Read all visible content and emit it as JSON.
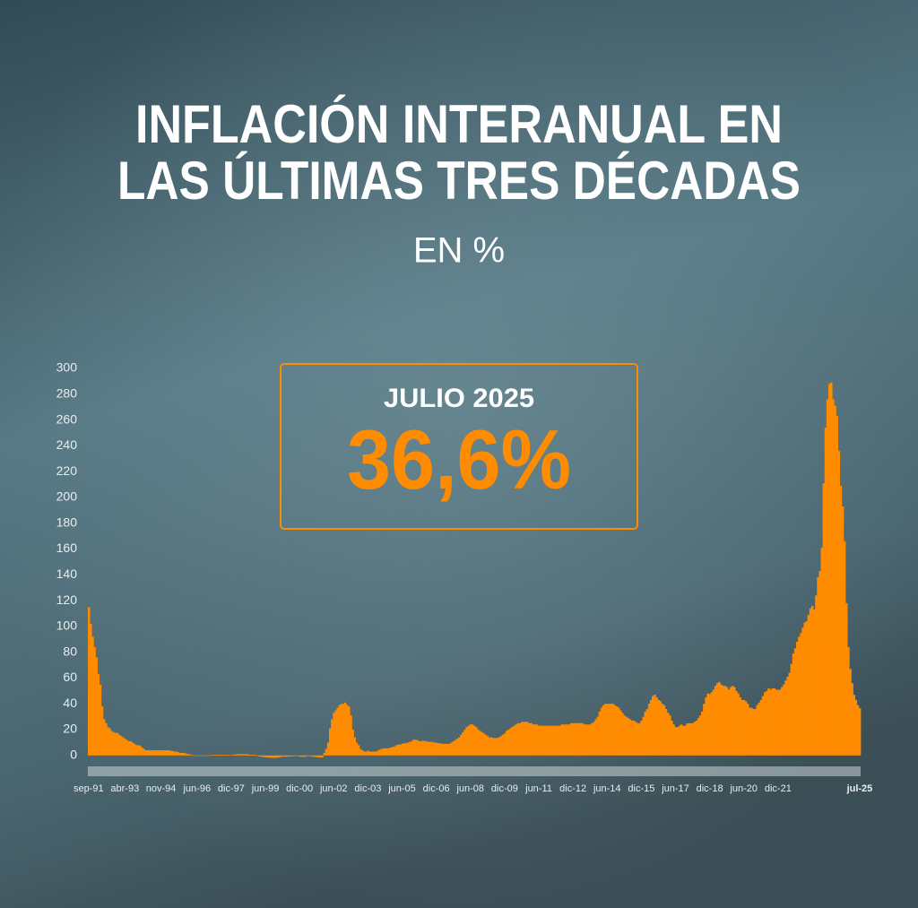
{
  "chart_data": {
    "type": "bar",
    "title": [
      "INFLACIÓN INTERANUAL EN",
      "LAS ÚLTIMAS TRES DÉCADAS"
    ],
    "subtitle": "EN %",
    "callout": {
      "label": "JULIO 2025",
      "value_label": "36,6%"
    },
    "color": "#ff8c00",
    "ylim": [
      -5,
      300
    ],
    "yticks": [
      0,
      20,
      40,
      60,
      80,
      100,
      120,
      140,
      160,
      180,
      200,
      220,
      240,
      260,
      280,
      300
    ],
    "categories": [
      "sep-91",
      null,
      null,
      null,
      null,
      null,
      null,
      null,
      null,
      null,
      null,
      null,
      null,
      null,
      null,
      null,
      null,
      null,
      null,
      "abr-93",
      null,
      null,
      null,
      null,
      null,
      null,
      null,
      null,
      null,
      null,
      null,
      null,
      null,
      null,
      null,
      null,
      null,
      null,
      "nov-94",
      null,
      null,
      null,
      null,
      null,
      null,
      null,
      null,
      null,
      null,
      null,
      null,
      null,
      null,
      null,
      null,
      null,
      null,
      "jun-96",
      null,
      null,
      null,
      null,
      null,
      null,
      null,
      null,
      null,
      null,
      null,
      null,
      null,
      null,
      null,
      null,
      null,
      "dic-97",
      null,
      null,
      null,
      null,
      null,
      null,
      null,
      null,
      null,
      null,
      null,
      null,
      null,
      null,
      null,
      null,
      null,
      "jun-99",
      null,
      null,
      null,
      null,
      null,
      null,
      null,
      null,
      null,
      null,
      null,
      null,
      null,
      null,
      null,
      null,
      null,
      "dic-00",
      null,
      null,
      null,
      null,
      null,
      null,
      null,
      null,
      null,
      null,
      null,
      null,
      null,
      null,
      null,
      null,
      null,
      "jun-02",
      null,
      null,
      null,
      null,
      null,
      null,
      null,
      null,
      null,
      null,
      null,
      null,
      null,
      null,
      null,
      null,
      null,
      "dic-03",
      null,
      null,
      null,
      null,
      null,
      null,
      null,
      null,
      null,
      null,
      null,
      null,
      null,
      null,
      null,
      null,
      null,
      "jun-05",
      null,
      null,
      null,
      null,
      null,
      null,
      null,
      null,
      null,
      null,
      null,
      null,
      null,
      null,
      null,
      null,
      null,
      "dic-06",
      null,
      null,
      null,
      null,
      null,
      null,
      null,
      null,
      null,
      null,
      null,
      null,
      null,
      null,
      null,
      null,
      null,
      "jun-08",
      null,
      null,
      null,
      null,
      null,
      null,
      null,
      null,
      null,
      null,
      null,
      null,
      null,
      null,
      null,
      null,
      null,
      "dic-09",
      null,
      null,
      null,
      null,
      null,
      null,
      null,
      null,
      null,
      null,
      null,
      null,
      null,
      null,
      null,
      null,
      null,
      "jun-11",
      null,
      null,
      null,
      null,
      null,
      null,
      null,
      null,
      null,
      null,
      null,
      null,
      null,
      null,
      null,
      null,
      null,
      "dic-12",
      null,
      null,
      null,
      null,
      null,
      null,
      null,
      null,
      null,
      null,
      null,
      null,
      null,
      null,
      null,
      null,
      null,
      "jun-14",
      null,
      null,
      null,
      null,
      null,
      null,
      null,
      null,
      null,
      null,
      null,
      null,
      null,
      null,
      null,
      null,
      null,
      "dic-15",
      null,
      null,
      null,
      null,
      null,
      null,
      null,
      null,
      null,
      null,
      null,
      null,
      null,
      null,
      null,
      null,
      null,
      "jun-17",
      null,
      null,
      null,
      null,
      null,
      null,
      null,
      null,
      null,
      null,
      null,
      null,
      null,
      null,
      null,
      null,
      null,
      "dic-18",
      null,
      null,
      null,
      null,
      null,
      null,
      null,
      null,
      null,
      null,
      null,
      null,
      null,
      null,
      null,
      null,
      null,
      "jun-20",
      null,
      null,
      null,
      null,
      null,
      null,
      null,
      null,
      null,
      null,
      null,
      null,
      null,
      null,
      null,
      null,
      null,
      "dic-21",
      null,
      null,
      null,
      null,
      null,
      null,
      null,
      null,
      null,
      null,
      null,
      null,
      null,
      null,
      null,
      null,
      null,
      null,
      null,
      null,
      null,
      null,
      null,
      null,
      null,
      null,
      null,
      null,
      null,
      null,
      null,
      null,
      null,
      null,
      null,
      null,
      null,
      null,
      null,
      null,
      null,
      null,
      "jul-25"
    ],
    "values": [
      115,
      102,
      92,
      84,
      76,
      63,
      55,
      38,
      28,
      25,
      22,
      21,
      19,
      18,
      17.5,
      17.5,
      16,
      15,
      14,
      13,
      12,
      11,
      11,
      10,
      9,
      8,
      8,
      7.4,
      6,
      5,
      4,
      4,
      4,
      4,
      4,
      4,
      4,
      4,
      4,
      3.9,
      4,
      4,
      4,
      3.5,
      3.5,
      3,
      3,
      2.5,
      2,
      2,
      2,
      1.6,
      1,
      1,
      0.5,
      0,
      0,
      0,
      0,
      0,
      0,
      0,
      0,
      0.1,
      0.3,
      0.3,
      0.5,
      0.5,
      0.5,
      0.6,
      0.5,
      0.5,
      0.5,
      0.4,
      0.4,
      0.3,
      0.5,
      0.8,
      0.9,
      1,
      1,
      1,
      1,
      1,
      0.8,
      0.5,
      0.5,
      0.7,
      0.3,
      -0.5,
      -0.8,
      -1,
      -1.2,
      -1.5,
      -1.5,
      -1.7,
      -1.7,
      -1.8,
      -1.8,
      -1.8,
      -1.5,
      -1.3,
      -1,
      -1,
      -1,
      -0.8,
      -0.8,
      -0.8,
      -0.5,
      -0.3,
      -0.5,
      -0.7,
      -1,
      -1,
      -1,
      -0.5,
      -0.5,
      -0.7,
      -1,
      -1.1,
      -1.3,
      -1.5,
      -1.6,
      -1.5,
      2,
      5,
      10,
      21,
      28,
      33,
      35,
      37,
      39,
      40,
      40,
      41,
      39,
      38,
      31,
      20,
      14,
      10,
      8,
      5,
      4,
      3,
      3,
      3.7,
      3,
      3,
      3,
      3,
      3.5,
      4.5,
      5,
      5.5,
      5.5,
      5.5,
      5.7,
      6.1,
      6.5,
      7,
      8,
      8.5,
      8.5,
      9,
      9.5,
      9.5,
      10,
      10.5,
      11,
      12.3,
      12,
      12,
      11,
      11,
      11.5,
      11,
      11,
      10.5,
      10.5,
      10.5,
      10,
      9.8,
      9.5,
      9.5,
      9,
      9,
      9,
      9,
      9,
      10,
      11,
      12,
      13,
      14,
      16,
      18,
      20,
      22,
      23,
      24,
      24,
      23,
      22,
      20,
      19,
      18,
      17,
      16,
      15,
      14,
      14,
      13.5,
      13.5,
      13.5,
      14,
      15,
      16,
      17,
      19,
      20,
      21,
      22,
      23,
      24,
      25,
      25,
      26,
      26,
      26,
      26,
      25,
      25,
      24,
      24,
      24,
      23,
      23,
      23,
      23,
      23,
      23,
      23,
      23,
      23,
      23,
      23,
      23,
      24,
      24,
      24,
      24,
      24,
      25,
      25,
      25,
      25,
      25,
      25,
      25,
      24,
      24,
      24,
      24,
      25,
      26,
      28,
      30,
      34,
      37,
      39,
      40,
      40,
      40,
      40,
      40,
      39,
      38,
      37,
      35,
      33,
      31,
      30,
      29,
      28,
      27,
      27,
      26,
      25,
      25,
      27,
      30,
      34,
      36,
      40,
      43,
      46,
      47,
      45,
      43,
      42,
      40,
      39,
      36,
      33,
      31,
      27,
      24,
      22,
      22,
      23,
      24,
      23,
      23,
      24.8,
      25,
      25,
      25,
      26,
      27,
      29,
      31,
      34,
      40,
      45,
      48,
      47.6,
      49,
      51,
      54,
      56,
      57,
      55,
      54,
      54,
      53,
      51,
      53,
      53.8,
      53,
      50,
      48,
      45,
      43,
      43,
      42,
      40,
      37,
      37,
      36,
      36.1,
      39,
      41,
      43,
      46,
      49,
      50,
      52,
      51,
      52,
      52,
      51,
      50.9,
      51,
      53,
      55,
      58,
      61,
      64,
      71,
      79,
      83,
      88,
      92,
      94.8,
      99,
      103,
      104,
      109,
      114,
      116,
      113,
      124,
      138,
      143,
      161,
      211,
      254,
      276,
      288,
      289,
      276,
      271,
      263,
      236,
      209,
      193,
      166,
      118,
      84,
      67,
      56,
      47,
      43,
      39,
      36.6
    ]
  }
}
